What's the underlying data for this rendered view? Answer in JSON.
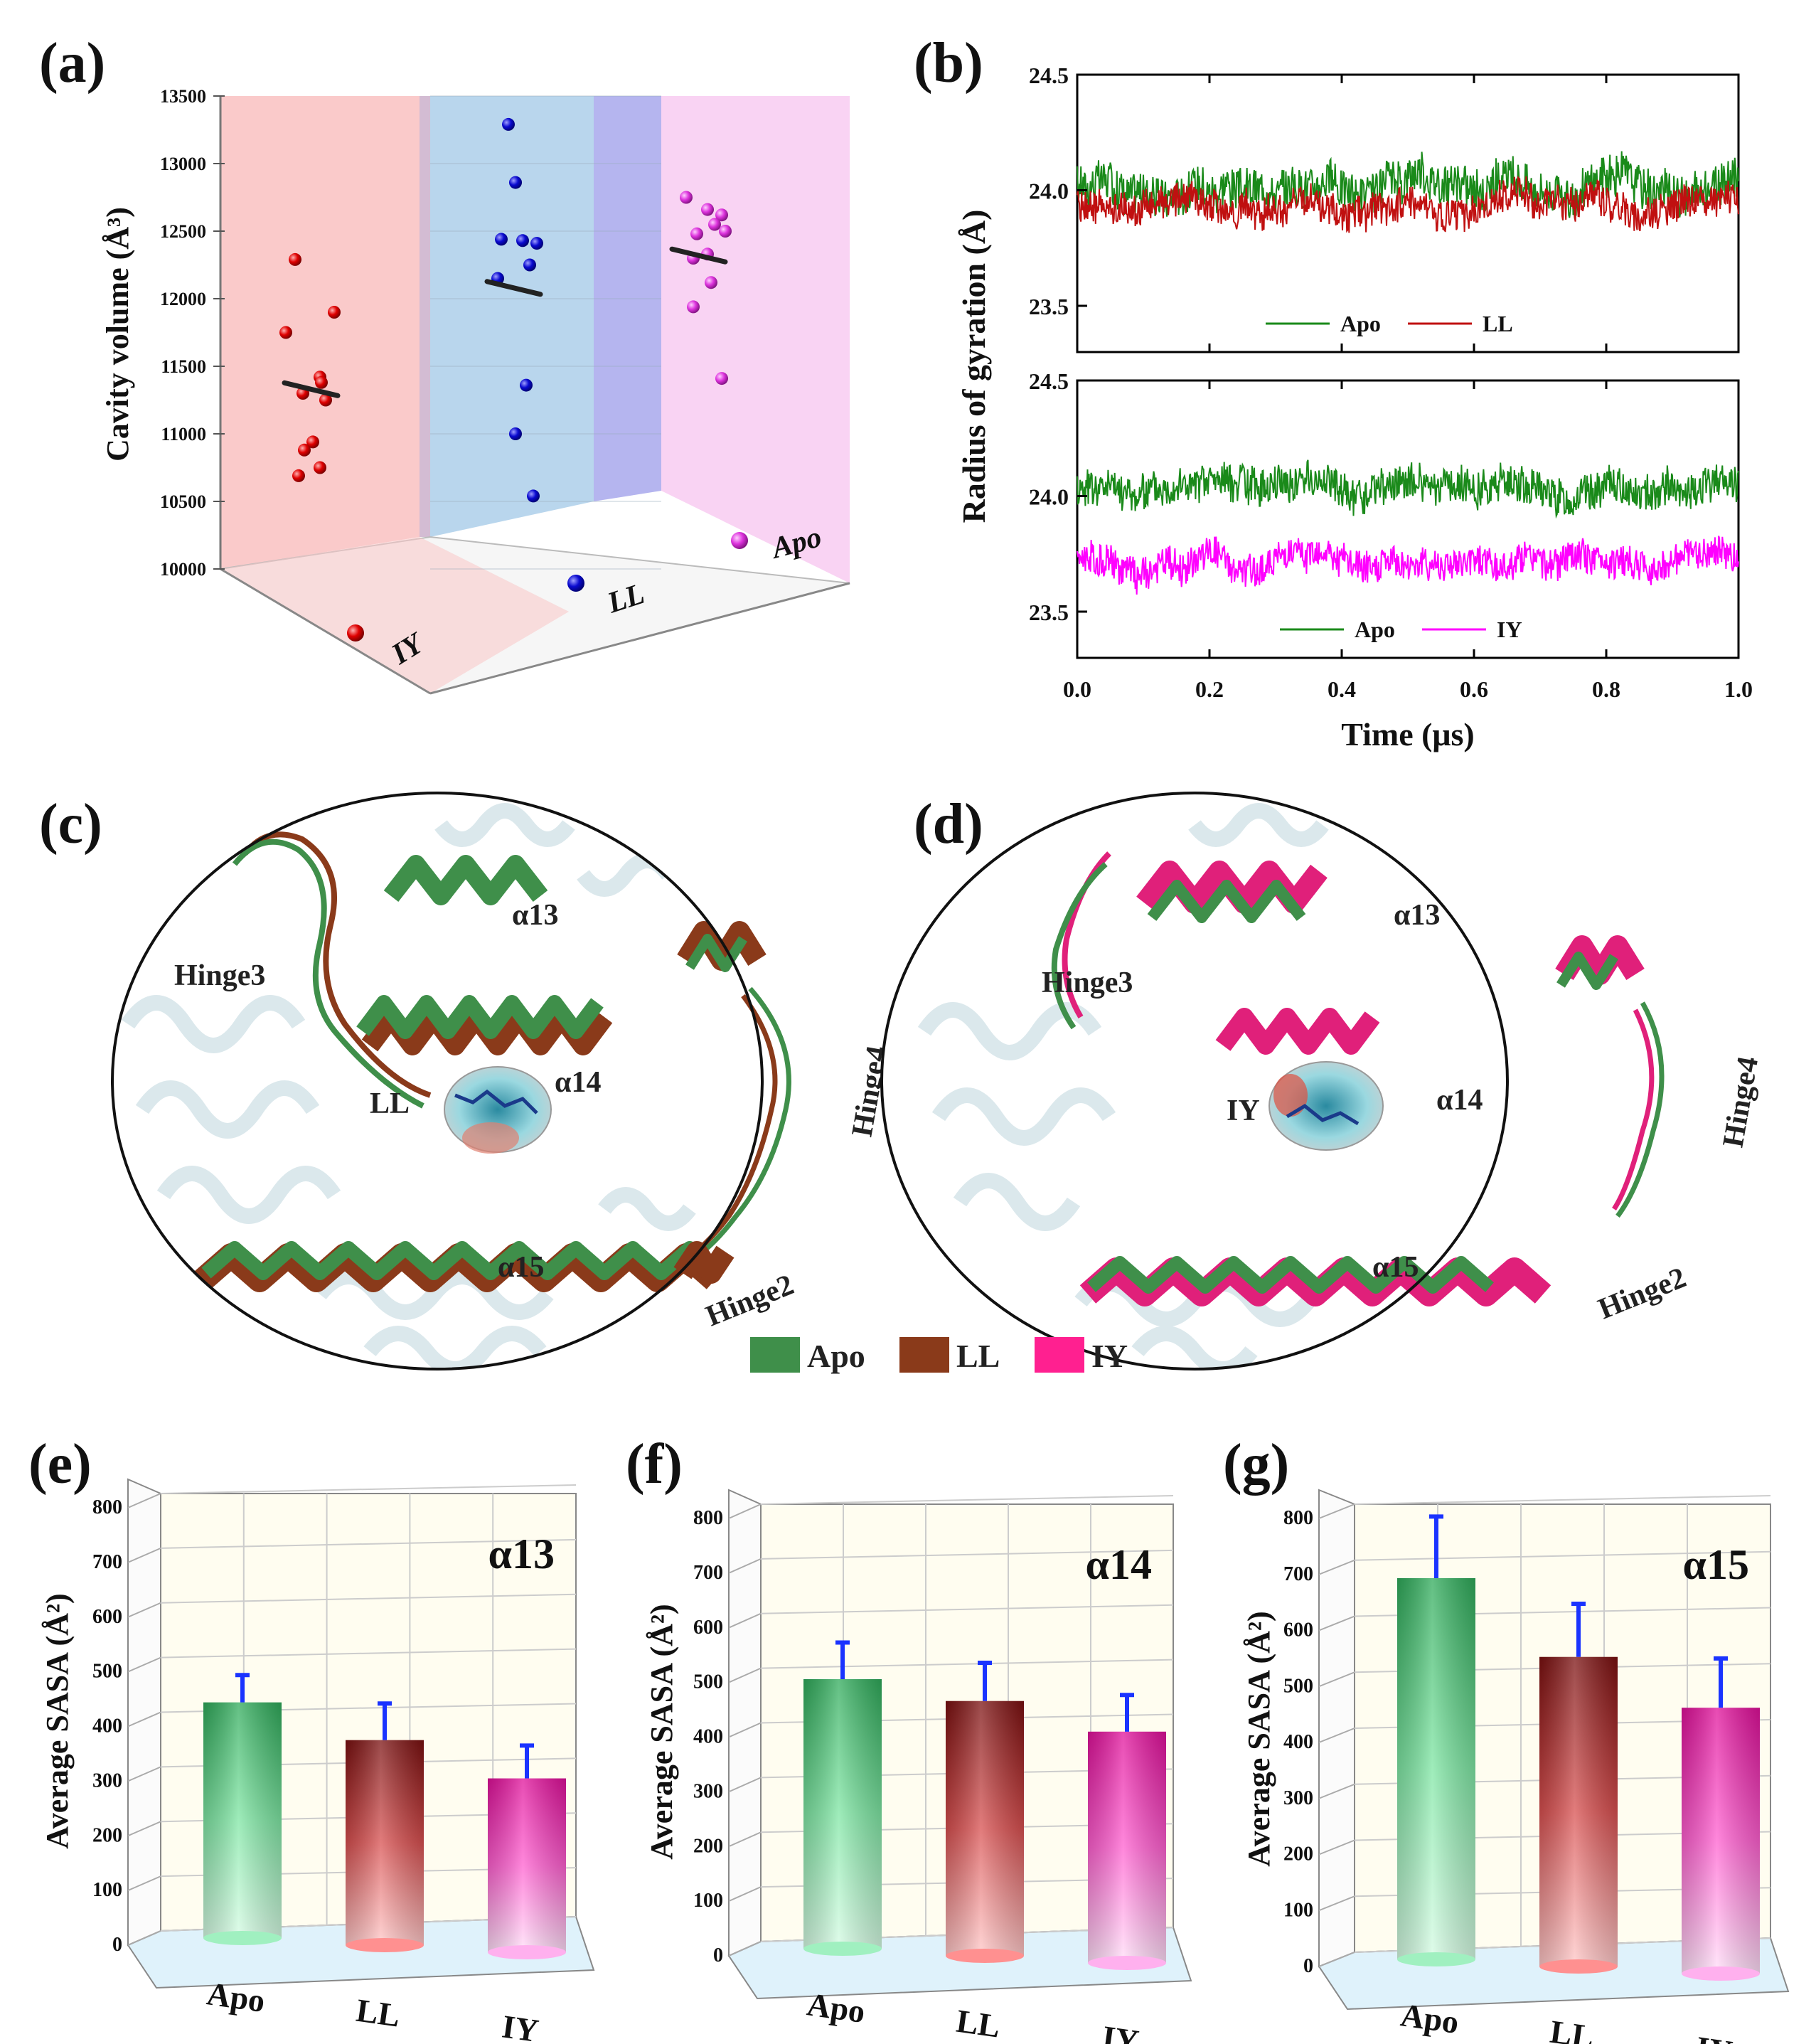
{
  "figure": {
    "panel_labels": [
      "(a)",
      "(b)",
      "(c)",
      "(d)",
      "(e)",
      "(f)",
      "(g)"
    ],
    "colors": {
      "apo": "#2e8b2e",
      "apo_light": "#8ff0b0",
      "ll": "#8b1a1a",
      "ll_light": "#f2a0a0",
      "iy": "#ff33cc",
      "iy_light": "#ffd0f4",
      "helix_apo": "#3f8f4a",
      "helix_ll": "#8a3a1a",
      "helix_iy": "#e0207a",
      "errbar": "#1a33ff"
    }
  },
  "structure_c": {
    "labels": {
      "a13": "α13",
      "a14": "α14",
      "a15": "α15",
      "hinge2": "Hinge2",
      "hinge3": "Hinge3",
      "hinge4": "Hinge4",
      "ligand": "LL"
    }
  },
  "structure_d": {
    "labels": {
      "a13": "α13",
      "a14": "α14",
      "a15": "α15",
      "hinge2": "Hinge2",
      "hinge3": "Hinge3",
      "hinge4": "Hinge4",
      "ligand": "IY"
    }
  },
  "structure_legend": [
    "Apo",
    "LL",
    "IY"
  ],
  "chart_data": [
    {
      "id": "a",
      "type": "scatter",
      "title": "",
      "ylabel": "Cavity volume (Å³)",
      "ylim": [
        10000,
        13500
      ],
      "yticks": [
        10000,
        10500,
        11000,
        11500,
        12000,
        12500,
        13000,
        13500
      ],
      "categories": [
        "IY",
        "LL",
        "Apo"
      ],
      "series": [
        {
          "name": "IY",
          "color": "#e00000",
          "values": [
            12290,
            11900,
            11750,
            11420,
            11380,
            11300,
            11250,
            10940,
            10880,
            10750,
            10690
          ],
          "mean": 11330
        },
        {
          "name": "LL",
          "color": "#0a0ad0",
          "values": [
            13290,
            12860,
            12440,
            12430,
            12410,
            12250,
            12150,
            11360,
            11000,
            10540
          ],
          "mean": 12080
        },
        {
          "name": "Apo",
          "color": "#dd33dd",
          "values": [
            12750,
            12660,
            12620,
            12550,
            12500,
            12480,
            12330,
            12300,
            12120,
            11940,
            11410
          ],
          "mean": 12320
        }
      ]
    },
    {
      "id": "b",
      "type": "line",
      "xlabel": "Time (μs)",
      "ylabel": "Radius of gyration (Å)",
      "xlim": [
        0,
        1.0
      ],
      "xticks": [
        0.0,
        0.2,
        0.4,
        0.6,
        0.8,
        1.0
      ],
      "xtick_labels": [
        "0.0",
        "0.2",
        "0.4",
        "0.6",
        "0.8",
        "1.0"
      ],
      "subplots": [
        {
          "ylim": [
            23.3,
            24.5
          ],
          "yticks": [
            23.5,
            24.0,
            24.5
          ],
          "ytick_labels": [
            "23.5",
            "24.0",
            "24.5"
          ],
          "series": [
            {
              "name": "Apo",
              "color": "#1a8a1a",
              "mean": 24.02,
              "amp": 0.09
            },
            {
              "name": "LL",
              "color": "#c01010",
              "mean": 23.93,
              "amp": 0.07
            }
          ]
        },
        {
          "ylim": [
            23.3,
            24.5
          ],
          "yticks": [
            23.5,
            24.0,
            24.5
          ],
          "ytick_labels": [
            "23.5",
            "24.0",
            "24.5"
          ],
          "series": [
            {
              "name": "Apo",
              "color": "#1a8a1a",
              "mean": 24.04,
              "amp": 0.08
            },
            {
              "name": "IY",
              "color": "#ff00ff",
              "mean": 23.72,
              "amp": 0.07
            }
          ]
        }
      ]
    },
    {
      "id": "e",
      "type": "bar",
      "title": "α13",
      "ylabel": "Average SASA (Å²)",
      "ylim": [
        0,
        800
      ],
      "yticks": [
        0,
        100,
        200,
        300,
        400,
        500,
        600,
        700,
        800
      ],
      "categories": [
        "Apo",
        "LL",
        "IY"
      ],
      "values": [
        418,
        362,
        305
      ],
      "errors": [
        50,
        67,
        60
      ]
    },
    {
      "id": "f",
      "type": "bar",
      "title": "α14",
      "ylabel": "Average SASA (Å²)",
      "ylim": [
        0,
        800
      ],
      "yticks": [
        0,
        100,
        200,
        300,
        400,
        500,
        600,
        700,
        800
      ],
      "categories": [
        "Apo",
        "LL",
        "IY"
      ],
      "values": [
        480,
        453,
        410
      ],
      "errors": [
        67,
        70,
        67
      ]
    },
    {
      "id": "g",
      "type": "bar",
      "title": "α15",
      "ylabel": "Average SASA (Å²)",
      "ylim": [
        0,
        800
      ],
      "yticks": [
        0,
        100,
        200,
        300,
        400,
        500,
        600,
        700,
        800
      ],
      "categories": [
        "Apo",
        "LL",
        "IY"
      ],
      "values": [
        668,
        540,
        462
      ],
      "errors": [
        110,
        95,
        88
      ]
    }
  ]
}
